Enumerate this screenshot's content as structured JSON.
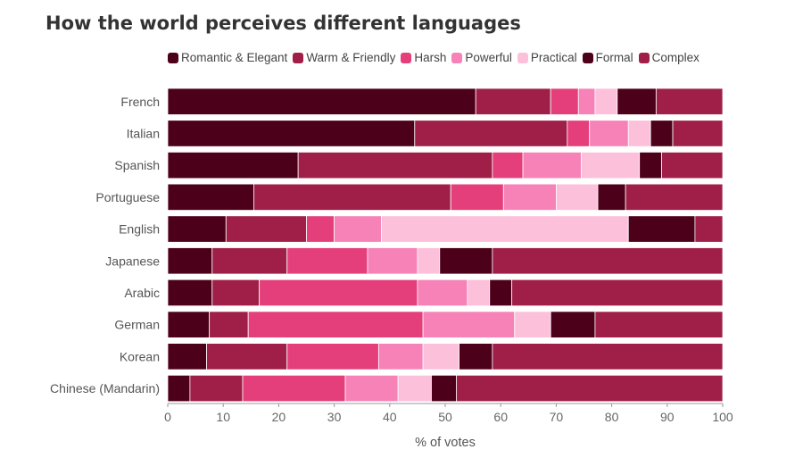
{
  "chart_data": {
    "type": "bar",
    "orientation": "horizontal",
    "stacked": true,
    "title": "How the world perceives different languages",
    "xlabel": "% of votes",
    "ylabel": "",
    "xlim": [
      0,
      100
    ],
    "xticks": [
      0,
      10,
      20,
      30,
      40,
      50,
      60,
      70,
      80,
      90,
      100
    ],
    "legend_position": "top",
    "grid": false,
    "categories": [
      "French",
      "Italian",
      "Spanish",
      "Portuguese",
      "English",
      "Japanese",
      "Arabic",
      "German",
      "Korean",
      "Chinese (Mandarin)"
    ],
    "series": [
      {
        "name": "Romantic & Elegant",
        "color": "#4d0019",
        "values": [
          55.5,
          44.5,
          23.5,
          15.5,
          10.5,
          8.0,
          8.0,
          7.5,
          7.0,
          4.0
        ]
      },
      {
        "name": "Warm & Friendly",
        "color": "#a01f48",
        "values": [
          13.5,
          27.5,
          35.0,
          35.5,
          14.5,
          13.5,
          8.5,
          7.0,
          14.5,
          9.5
        ]
      },
      {
        "name": "Harsh",
        "color": "#e53f7b",
        "values": [
          5.0,
          4.0,
          5.5,
          9.5,
          5.0,
          14.5,
          28.5,
          31.5,
          16.5,
          18.5
        ]
      },
      {
        "name": "Powerful",
        "color": "#f782b8",
        "values": [
          3.0,
          7.0,
          10.5,
          9.5,
          8.5,
          9.0,
          9.0,
          16.5,
          8.0,
          9.5
        ]
      },
      {
        "name": "Practical",
        "color": "#fcc0db",
        "values": [
          4.0,
          4.0,
          10.5,
          7.5,
          44.5,
          4.0,
          4.0,
          6.5,
          6.5,
          6.0
        ]
      },
      {
        "name": "Formal",
        "color": "#4d0019",
        "values": [
          7.0,
          4.0,
          4.0,
          5.0,
          12.0,
          9.5,
          4.0,
          8.0,
          6.0,
          4.5
        ]
      },
      {
        "name": "Complex",
        "color": "#a01f48",
        "values": [
          12.0,
          9.0,
          11.0,
          17.5,
          5.0,
          41.5,
          38.0,
          23.0,
          41.5,
          48.0
        ]
      }
    ]
  }
}
